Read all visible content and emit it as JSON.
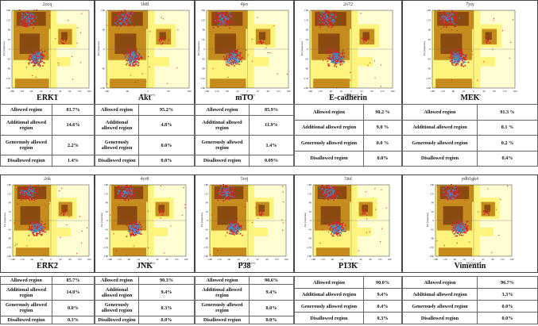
{
  "colors": {
    "disallowed": "#fffdd2",
    "generous": "#fcf47c",
    "additional": "#c58b1c",
    "core": "#8b4a10",
    "glycine": "#d4262b",
    "residue": "#3b8fcf",
    "outlier": "#ff1010"
  },
  "axis": {
    "x_label": "Phi (degrees)",
    "y_label": "Psi (degrees)"
  },
  "stat_labels": {
    "allowed": "Allowed region",
    "additional": "Additional allowed region",
    "generous": "Generously allowed region",
    "disallowed": "Disallowed region"
  },
  "panels": [
    {
      "pdb": "2ocq",
      "name": "ERK1",
      "ticks_x": [
        "-180",
        "-135",
        "-90",
        "-45",
        "0",
        "45",
        "90",
        "135",
        "180"
      ],
      "ticks_y": [
        "180",
        "135",
        "90",
        "45",
        "0",
        "-45",
        "-90",
        "-135",
        "-180"
      ],
      "stats": {
        "allowed": "81.7%",
        "additional": "14.6%",
        "generous": "2.2%",
        "disallowed": "1.4%"
      }
    },
    {
      "pdb": "1h8l",
      "name": "Akt",
      "ticks_x": [
        "-180",
        "-90",
        "0",
        "90",
        "180"
      ],
      "ticks_y": [
        "180",
        "90",
        "0",
        "-90",
        "-180"
      ],
      "stats": {
        "allowed": "95.2%",
        "additional": "4.8%",
        "generous": "0.0%",
        "disallowed": "0.0%"
      }
    },
    {
      "pdb": "4jsv",
      "name": "mTO",
      "ticks_x": [
        "-180",
        "-135",
        "-90",
        "-45",
        "0",
        "45",
        "90",
        "135",
        "180"
      ],
      "ticks_y": [
        "180",
        "135",
        "90",
        "45",
        "0",
        "-45",
        "-90",
        "-135",
        "-180"
      ],
      "stats": {
        "allowed": "85.9%",
        "additional": "11.9%",
        "generous": "1.4%",
        "disallowed": "0.09%"
      }
    },
    {
      "pdb": "2o72",
      "name": "E-cadherin",
      "ticks_x": [
        "-180",
        "-135",
        "-90",
        "-45",
        "0",
        "45",
        "90",
        "135",
        "180"
      ],
      "ticks_y": [
        "180",
        "135",
        "90",
        "45",
        "0",
        "-45",
        "-90",
        "-135",
        "-180"
      ],
      "stats": {
        "allowed": "90.2 %",
        "additional": "9.8 %",
        "generous": "0.0 %",
        "disallowed": "0.0%"
      }
    },
    {
      "pdb": "7juy",
      "name": "MEK",
      "ticks_x": [
        "-180",
        "-135",
        "-90",
        "-45",
        "0",
        "45",
        "90",
        "135",
        "180"
      ],
      "ticks_y": [
        "180",
        "135",
        "90",
        "45",
        "0",
        "-45",
        "-90",
        "-135",
        "-180"
      ],
      "stats": {
        "allowed": "91.3 %",
        "additional": "8.1 %",
        "generous": "0.2 %",
        "disallowed": "0.4%"
      }
    },
    {
      "pdb": "2ok",
      "name": "ERK2",
      "ticks_x": [
        "-180",
        "-135",
        "-90",
        "-45",
        "0",
        "45",
        "90",
        "135",
        "180"
      ],
      "ticks_y": [
        "180",
        "135",
        "90",
        "45",
        "0",
        "-45",
        "-90",
        "-135",
        "-180"
      ],
      "stats": {
        "allowed": "85.7%",
        "additional": "14.0%",
        "generous": "0.0%",
        "disallowed": "0.3%"
      }
    },
    {
      "pdb": "4yr8",
      "name": "JNK",
      "ticks_x": [
        "-180",
        "-135",
        "-90",
        "-45",
        "0",
        "45",
        "90",
        "135",
        "180"
      ],
      "ticks_y": [
        "180",
        "135",
        "90",
        "45",
        "0",
        "-45",
        "-90",
        "-135",
        "-180"
      ],
      "stats": {
        "allowed": "90.3%",
        "additional": "9.4%",
        "generous": "0.3%",
        "disallowed": "0.0%"
      }
    },
    {
      "pdb": "5orj",
      "name": "P38",
      "ticks_x": [
        "-180",
        "-135",
        "-90",
        "-45",
        "0",
        "45",
        "90",
        "135",
        "180"
      ],
      "ticks_y": [
        "180",
        "135",
        "90",
        "45",
        "0",
        "-45",
        "-90",
        "-135",
        "-180"
      ],
      "stats": {
        "allowed": "90.6%",
        "additional": "9.4%",
        "generous": "0.0%",
        "disallowed": "0.0%"
      }
    },
    {
      "pdb": "5itd",
      "name": "P13K",
      "ticks_x": [
        "-180",
        "-135",
        "-90",
        "-45",
        "0",
        "45",
        "90",
        "135",
        "180"
      ],
      "ticks_y": [
        "180",
        "135",
        "90",
        "45",
        "0",
        "-45",
        "-90",
        "-135",
        "-180"
      ],
      "stats": {
        "allowed": "90.0%",
        "additional": "9.4%",
        "generous": "0.4%",
        "disallowed": "0.3%"
      }
    },
    {
      "pdb": "pdb1gk4",
      "name": "Vimentin",
      "ticks_x": [
        "-180",
        "-135",
        "-90",
        "-45",
        "0",
        "45",
        "90",
        "135",
        "180"
      ],
      "ticks_y": [
        "180",
        "135",
        "90",
        "45",
        "0",
        "-45",
        "-90",
        "-135",
        "-180"
      ],
      "stats": {
        "allowed": "96.7%",
        "additional": "3.3%",
        "generous": "0.0%",
        "disallowed": "0.0%"
      }
    }
  ]
}
